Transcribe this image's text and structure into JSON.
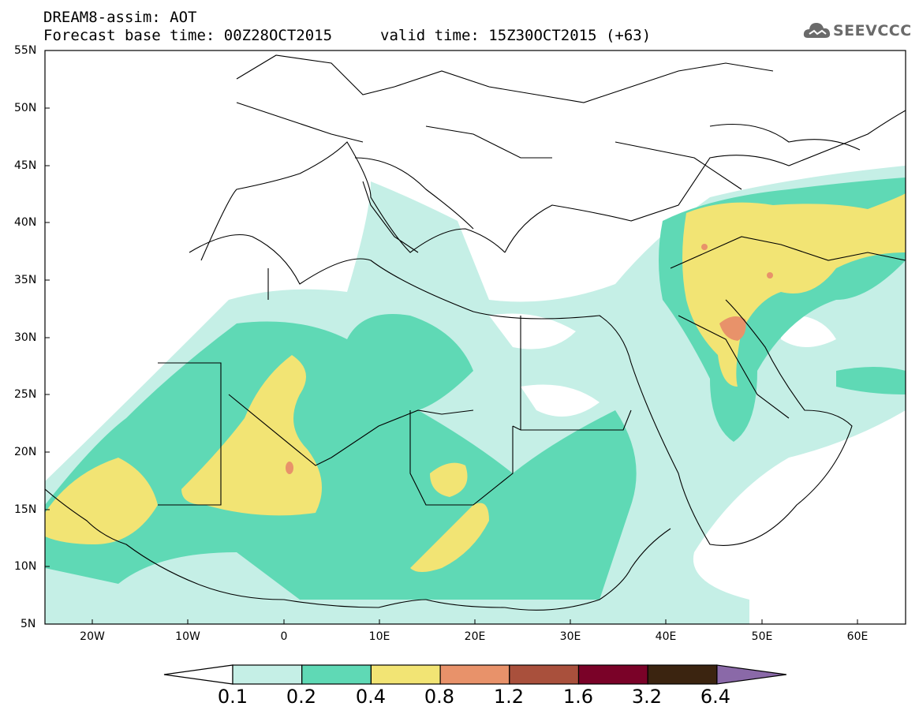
{
  "title": {
    "line1": "DREAM8-assim: AOT",
    "line2": "Forecast base time: 00Z28OCT2015",
    "valid": "valid time: 15Z30OCT2015 (+63)"
  },
  "logo": {
    "text": "SEEVCCC"
  },
  "axes": {
    "lat_labels": [
      "55N",
      "50N",
      "45N",
      "40N",
      "35N",
      "30N",
      "25N",
      "20N",
      "15N",
      "10N",
      "5N"
    ],
    "lon_labels": [
      "20W",
      "10W",
      "0",
      "10E",
      "20E",
      "30E",
      "40E",
      "50E",
      "60E"
    ]
  },
  "colorbar": {
    "labels": [
      "0.1",
      "0.2",
      "0.4",
      "0.8",
      "1.2",
      "1.6",
      "3.2",
      "6.4"
    ],
    "colors": [
      "#ffffff",
      "#c5efe6",
      "#5fd9b5",
      "#f2e474",
      "#e8926a",
      "#a9503c",
      "#7a0228",
      "#3b2410",
      "#8a69a8"
    ]
  },
  "chart_data": {
    "type": "heatmap",
    "variable": "AOT",
    "lon_range": [
      -25,
      65
    ],
    "lat_range": [
      5,
      55
    ],
    "levels": [
      0.1,
      0.2,
      0.4,
      0.8,
      1.2,
      1.6,
      3.2,
      6.4
    ]
  }
}
